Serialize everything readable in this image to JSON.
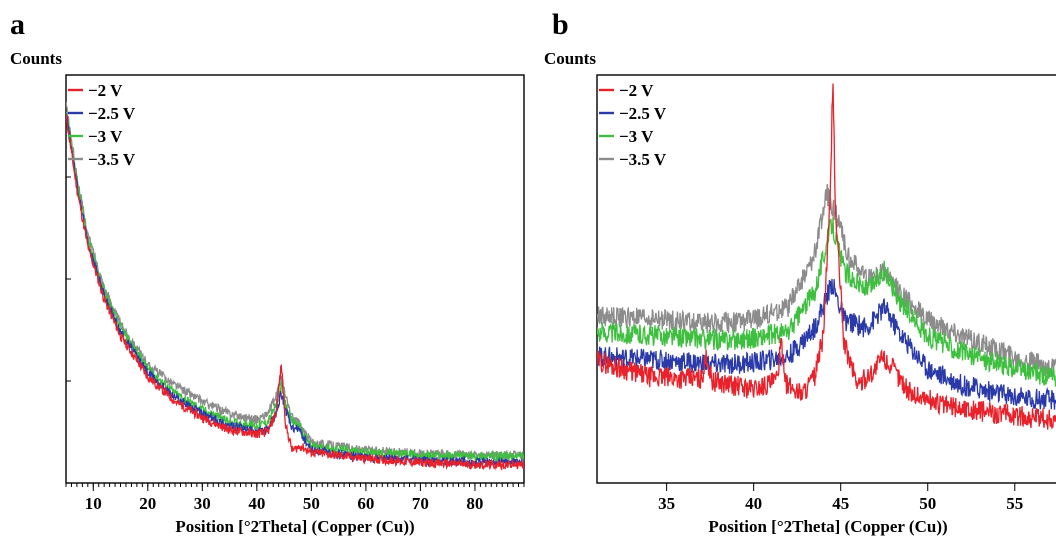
{
  "chart_data": [
    {
      "type": "line",
      "panel": "a",
      "ylabel": "Counts",
      "xlabel": "Position [°2Theta] (Copper (Cu))",
      "xlim": [
        5,
        89
      ],
      "ylim": [
        0,
        100
      ],
      "x_ticks": [
        10,
        20,
        30,
        40,
        50,
        60,
        70,
        80
      ],
      "grid": false,
      "legend_position": "top-left",
      "series": [
        {
          "name": "−2 V",
          "color": "#e8212a",
          "points": [
            [
              5,
              90
            ],
            [
              7,
              72
            ],
            [
              9,
              58
            ],
            [
              12,
              45
            ],
            [
              15,
              36
            ],
            [
              20,
              26
            ],
            [
              25,
              20
            ],
            [
              30,
              16
            ],
            [
              35,
              13
            ],
            [
              40,
              12
            ],
            [
              42,
              12.5
            ],
            [
              43.5,
              17
            ],
            [
              44.5,
              29
            ],
            [
              45.3,
              14
            ],
            [
              46.5,
              8
            ],
            [
              48,
              9
            ],
            [
              50,
              7.5
            ],
            [
              60,
              6
            ],
            [
              70,
              5
            ],
            [
              80,
              4.5
            ],
            [
              89,
              4.5
            ]
          ]
        },
        {
          "name": "−2.5 V",
          "color": "#2a3aa8",
          "points": [
            [
              5,
              91
            ],
            [
              7,
              73
            ],
            [
              9,
              59
            ],
            [
              12,
              46
            ],
            [
              15,
              37
            ],
            [
              20,
              27
            ],
            [
              25,
              21
            ],
            [
              30,
              17
            ],
            [
              35,
              14
            ],
            [
              40,
              12.5
            ],
            [
              42,
              13
            ],
            [
              43.5,
              17
            ],
            [
              44.5,
              22
            ],
            [
              45.3,
              18
            ],
            [
              46.5,
              13
            ],
            [
              47.5,
              13.5
            ],
            [
              49,
              10
            ],
            [
              50,
              8
            ],
            [
              60,
              6.2
            ],
            [
              70,
              5.5
            ],
            [
              80,
              5
            ],
            [
              89,
              5
            ]
          ]
        },
        {
          "name": "−3 V",
          "color": "#3fbf3f",
          "points": [
            [
              5,
              92
            ],
            [
              7,
              74
            ],
            [
              9,
              60
            ],
            [
              12,
              47
            ],
            [
              15,
              38
            ],
            [
              20,
              28
            ],
            [
              25,
              22
            ],
            [
              30,
              18
            ],
            [
              35,
              15
            ],
            [
              40,
              14
            ],
            [
              42,
              15
            ],
            [
              43.5,
              19
            ],
            [
              44.5,
              24
            ],
            [
              45.3,
              19
            ],
            [
              46.5,
              15
            ],
            [
              47.5,
              14.5
            ],
            [
              49,
              11
            ],
            [
              50,
              9
            ],
            [
              60,
              7.5
            ],
            [
              70,
              6.8
            ],
            [
              80,
              6.5
            ],
            [
              89,
              6.5
            ]
          ]
        },
        {
          "name": "−3.5 V",
          "color": "#8c8c8c",
          "points": [
            [
              5,
              93
            ],
            [
              7,
              75
            ],
            [
              9,
              61
            ],
            [
              12,
              48
            ],
            [
              15,
              39
            ],
            [
              20,
              29
            ],
            [
              25,
              24
            ],
            [
              30,
              20
            ],
            [
              35,
              17
            ],
            [
              40,
              15.5
            ],
            [
              42,
              17
            ],
            [
              43.5,
              21
            ],
            [
              44.5,
              26
            ],
            [
              45.3,
              21
            ],
            [
              46.5,
              16
            ],
            [
              47.5,
              15
            ],
            [
              49,
              12
            ],
            [
              50,
              10
            ],
            [
              60,
              8
            ],
            [
              70,
              7.2
            ],
            [
              80,
              6.8
            ],
            [
              89,
              6.8
            ]
          ]
        }
      ]
    },
    {
      "type": "line",
      "panel": "b",
      "ylabel": "Counts",
      "xlabel": "Position [°2Theta] (Copper (Cu))",
      "xlim": [
        31,
        58
      ],
      "ylim": [
        0,
        100
      ],
      "x_ticks": [
        35,
        40,
        45,
        50,
        55
      ],
      "grid": false,
      "legend_position": "top-left",
      "series": [
        {
          "name": "−2 V",
          "color": "#e8212a",
          "points": [
            [
              31,
              30
            ],
            [
              34,
              26
            ],
            [
              37,
              25.5
            ],
            [
              37.3,
              31
            ],
            [
              37.6,
              25
            ],
            [
              40,
              23
            ],
            [
              41.3,
              25
            ],
            [
              41.6,
              34
            ],
            [
              41.9,
              24
            ],
            [
              42.8,
              22
            ],
            [
              43.5,
              26
            ],
            [
              44,
              36
            ],
            [
              44.4,
              70
            ],
            [
              44.55,
              100
            ],
            [
              44.7,
              66
            ],
            [
              45.2,
              34
            ],
            [
              46,
              24
            ],
            [
              47,
              28
            ],
            [
              47.4,
              31
            ],
            [
              48,
              28
            ],
            [
              49,
              22
            ],
            [
              51,
              19
            ],
            [
              54,
              17
            ],
            [
              56,
              16
            ],
            [
              58,
              15
            ]
          ]
        },
        {
          "name": "−2.5 V",
          "color": "#2a3aa8",
          "points": [
            [
              31,
              31
            ],
            [
              35,
              30
            ],
            [
              38,
              29
            ],
            [
              40,
              29.5
            ],
            [
              42,
              31
            ],
            [
              43.5,
              38
            ],
            [
              44.5,
              49
            ],
            [
              45.2,
              40
            ],
            [
              46.5,
              38
            ],
            [
              47.5,
              43
            ],
            [
              48.5,
              36
            ],
            [
              50,
              28
            ],
            [
              52,
              24
            ],
            [
              55,
              21
            ],
            [
              58,
              20
            ]
          ]
        },
        {
          "name": "−3 V",
          "color": "#3fbf3f",
          "points": [
            [
              31,
              37
            ],
            [
              35,
              36
            ],
            [
              38,
              35
            ],
            [
              40,
              35.5
            ],
            [
              42,
              37
            ],
            [
              43.5,
              47
            ],
            [
              44.5,
              64
            ],
            [
              45.2,
              52
            ],
            [
              46.5,
              47
            ],
            [
              47.5,
              52
            ],
            [
              48.5,
              44
            ],
            [
              50,
              36
            ],
            [
              52,
              32
            ],
            [
              55,
              28
            ],
            [
              58,
              25
            ]
          ]
        },
        {
          "name": "−3.5 V",
          "color": "#8c8c8c",
          "points": [
            [
              31,
              41
            ],
            [
              35,
              40
            ],
            [
              38,
              39
            ],
            [
              40,
              40
            ],
            [
              42,
              43
            ],
            [
              43.5,
              56
            ],
            [
              44.2,
              71
            ],
            [
              44.8,
              65
            ],
            [
              45.5,
              55
            ],
            [
              46.5,
              50
            ],
            [
              47.5,
              52
            ],
            [
              48.5,
              46
            ],
            [
              50,
              40
            ],
            [
              52,
              36
            ],
            [
              55,
              31
            ],
            [
              58,
              27
            ]
          ]
        }
      ]
    }
  ]
}
